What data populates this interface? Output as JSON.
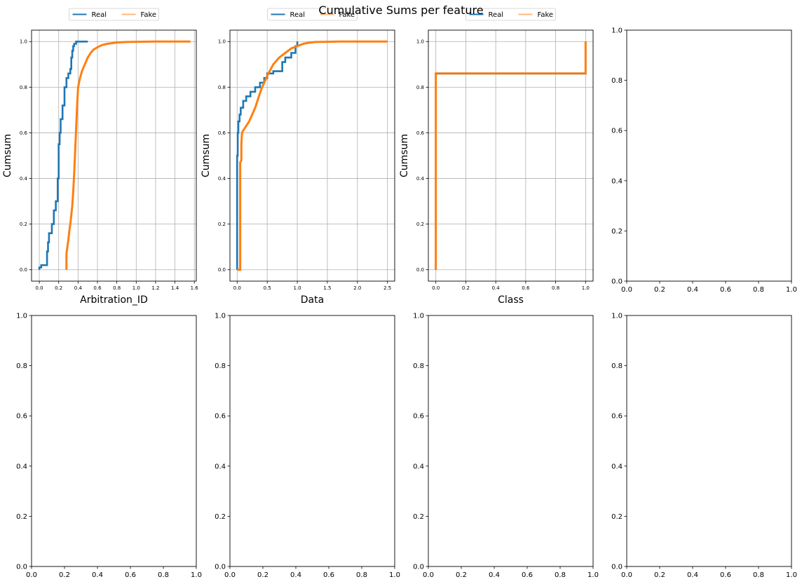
{
  "figure": {
    "title": "Cumulative Sums per feature"
  },
  "colors": {
    "real": "#1f77b4",
    "fake": "#ff7f0e",
    "grid": "#b0b0b0",
    "axis": "#000000"
  },
  "chart_data": [
    {
      "type": "line",
      "xlabel": "Arbitration_ID",
      "ylabel": "Cumsum",
      "xlim": [
        -0.08,
        1.62
      ],
      "ylim": [
        -0.05,
        1.05
      ],
      "xticks": [
        0.0,
        0.2,
        0.4,
        0.6,
        0.8,
        1.0,
        1.2,
        1.4,
        1.6
      ],
      "xtick_labels": [
        "0.0",
        "0.2",
        "0.4",
        "0.6",
        "0.8",
        "1.0",
        "1.2",
        "1.4",
        "1.6"
      ],
      "yticks": [
        0.0,
        0.2,
        0.4,
        0.6,
        0.8,
        1.0
      ],
      "ytick_labels": [
        "0.0",
        "0.2",
        "0.4",
        "0.6",
        "0.8",
        "1.0"
      ],
      "grid": true,
      "legend": {
        "placement": "top-center-above",
        "entries": [
          "Real",
          "Fake"
        ]
      },
      "series": [
        {
          "name": "Real",
          "x": [
            0.0,
            0.0,
            0.02,
            0.02,
            0.08,
            0.08,
            0.09,
            0.09,
            0.1,
            0.1,
            0.13,
            0.13,
            0.15,
            0.15,
            0.17,
            0.17,
            0.19,
            0.19,
            0.2,
            0.2,
            0.21,
            0.21,
            0.22,
            0.22,
            0.24,
            0.24,
            0.26,
            0.26,
            0.28,
            0.28,
            0.3,
            0.3,
            0.32,
            0.32,
            0.33,
            0.33,
            0.34,
            0.34,
            0.35,
            0.35,
            0.36,
            0.36,
            0.38,
            0.38,
            0.47,
            0.5
          ],
          "y": [
            0.0,
            0.01,
            0.01,
            0.02,
            0.02,
            0.08,
            0.08,
            0.12,
            0.12,
            0.16,
            0.16,
            0.2,
            0.2,
            0.26,
            0.26,
            0.3,
            0.3,
            0.4,
            0.4,
            0.55,
            0.55,
            0.6,
            0.6,
            0.66,
            0.66,
            0.72,
            0.72,
            0.8,
            0.8,
            0.84,
            0.84,
            0.86,
            0.86,
            0.88,
            0.88,
            0.93,
            0.93,
            0.96,
            0.96,
            0.98,
            0.98,
            0.99,
            0.99,
            1.0,
            1.0,
            1.0
          ]
        },
        {
          "name": "Fake",
          "x": [
            0.28,
            0.28,
            0.29,
            0.3,
            0.31,
            0.32,
            0.33,
            0.34,
            0.35,
            0.36,
            0.37,
            0.38,
            0.39,
            0.4,
            0.42,
            0.44,
            0.46,
            0.48,
            0.5,
            0.53,
            0.56,
            0.6,
            0.65,
            0.7,
            0.75,
            0.8,
            0.9,
            1.0,
            1.2,
            1.4,
            1.56
          ],
          "y": [
            0.0,
            0.07,
            0.1,
            0.13,
            0.17,
            0.2,
            0.24,
            0.28,
            0.34,
            0.42,
            0.52,
            0.62,
            0.72,
            0.8,
            0.84,
            0.87,
            0.89,
            0.91,
            0.93,
            0.95,
            0.965,
            0.975,
            0.985,
            0.99,
            0.993,
            0.996,
            0.998,
            0.999,
            1.0,
            1.0,
            1.0
          ]
        }
      ]
    },
    {
      "type": "line",
      "xlabel": "Data",
      "ylabel": "Cumsum",
      "xlim": [
        -0.12,
        2.62
      ],
      "ylim": [
        -0.05,
        1.05
      ],
      "xticks": [
        0.0,
        0.5,
        1.0,
        1.5,
        2.0,
        2.5
      ],
      "xtick_labels": [
        "0.0",
        "0.5",
        "1.0",
        "1.5",
        "2.0",
        "2.5"
      ],
      "yticks": [
        0.0,
        0.2,
        0.4,
        0.6,
        0.8,
        1.0
      ],
      "ytick_labels": [
        "0.0",
        "0.2",
        "0.4",
        "0.6",
        "0.8",
        "1.0"
      ],
      "grid": true,
      "legend": {
        "placement": "top-center-above",
        "entries": [
          "Real",
          "Fake"
        ]
      },
      "series": [
        {
          "name": "Real",
          "x": [
            0.0,
            0.0,
            0.01,
            0.01,
            0.02,
            0.02,
            0.04,
            0.04,
            0.06,
            0.06,
            0.1,
            0.1,
            0.15,
            0.15,
            0.22,
            0.22,
            0.3,
            0.3,
            0.38,
            0.38,
            0.45,
            0.45,
            0.5,
            0.5,
            0.6,
            0.6,
            0.75,
            0.75,
            0.8,
            0.8,
            0.9,
            0.9,
            0.97,
            0.97,
            1.0,
            1.0
          ],
          "y": [
            0.0,
            0.5,
            0.5,
            0.6,
            0.6,
            0.65,
            0.65,
            0.68,
            0.68,
            0.71,
            0.71,
            0.74,
            0.74,
            0.76,
            0.76,
            0.78,
            0.78,
            0.8,
            0.8,
            0.82,
            0.82,
            0.84,
            0.84,
            0.86,
            0.86,
            0.87,
            0.87,
            0.91,
            0.91,
            0.93,
            0.93,
            0.95,
            0.95,
            0.98,
            0.98,
            1.0
          ]
        },
        {
          "name": "Fake",
          "x": [
            0.0,
            0.05,
            0.05,
            0.07,
            0.07,
            0.08,
            0.1,
            0.15,
            0.2,
            0.25,
            0.3,
            0.35,
            0.4,
            0.45,
            0.5,
            0.6,
            0.7,
            0.8,
            0.9,
            1.0,
            1.1,
            1.2,
            1.3,
            1.5,
            1.7,
            2.0,
            2.5
          ],
          "y": [
            0.0,
            0.0,
            0.47,
            0.48,
            0.55,
            0.6,
            0.61,
            0.63,
            0.65,
            0.68,
            0.71,
            0.75,
            0.79,
            0.82,
            0.85,
            0.9,
            0.93,
            0.95,
            0.97,
            0.98,
            0.99,
            0.995,
            0.998,
            0.999,
            1.0,
            1.0,
            1.0
          ]
        }
      ]
    },
    {
      "type": "line",
      "xlabel": "Class",
      "ylabel": "Cumsum",
      "xlim": [
        -0.05,
        1.05
      ],
      "ylim": [
        -0.05,
        1.05
      ],
      "xticks": [
        0.0,
        0.2,
        0.4,
        0.6,
        0.8,
        1.0
      ],
      "xtick_labels": [
        "0.0",
        "0.2",
        "0.4",
        "0.6",
        "0.8",
        "1.0"
      ],
      "yticks": [
        0.0,
        0.2,
        0.4,
        0.6,
        0.8,
        1.0
      ],
      "ytick_labels": [
        "0.0",
        "0.2",
        "0.4",
        "0.6",
        "0.8",
        "1.0"
      ],
      "grid": true,
      "legend": {
        "placement": "top-center-above",
        "entries": [
          "Real",
          "Fake"
        ]
      },
      "series": [
        {
          "name": "Real",
          "x": [
            0.0,
            0.0,
            1.0,
            1.0
          ],
          "y": [
            0.0,
            0.86,
            0.86,
            1.0
          ]
        },
        {
          "name": "Fake",
          "x": [
            0.0,
            0.0,
            1.0,
            1.0
          ],
          "y": [
            0.0,
            0.86,
            0.86,
            1.0
          ]
        }
      ]
    },
    {
      "type": "line",
      "xlabel": "",
      "ylabel": "",
      "xlim": [
        0,
        1
      ],
      "ylim": [
        0,
        1
      ],
      "xticks": [
        0.0,
        0.2,
        0.4,
        0.6,
        0.8,
        1.0
      ],
      "xtick_labels": [
        "0.0",
        "0.2",
        "0.4",
        "0.6",
        "0.8",
        "1.0"
      ],
      "yticks": [
        0.0,
        0.2,
        0.4,
        0.6,
        0.8,
        1.0
      ],
      "ytick_labels": [
        "0.0",
        "0.2",
        "0.4",
        "0.6",
        "0.8",
        "1.0"
      ],
      "grid": false,
      "series": []
    },
    {
      "type": "line",
      "xlabel": "",
      "ylabel": "",
      "xlim": [
        0,
        1
      ],
      "ylim": [
        0,
        1
      ],
      "xticks": [
        0.0,
        0.2,
        0.4,
        0.6,
        0.8,
        1.0
      ],
      "xtick_labels": [
        "0.0",
        "0.2",
        "0.4",
        "0.6",
        "0.8",
        "1.0"
      ],
      "yticks": [
        0.0,
        0.2,
        0.4,
        0.6,
        0.8,
        1.0
      ],
      "ytick_labels": [
        "0.0",
        "0.2",
        "0.4",
        "0.6",
        "0.8",
        "1.0"
      ],
      "grid": false,
      "series": []
    },
    {
      "type": "line",
      "xlabel": "",
      "ylabel": "",
      "xlim": [
        0,
        1
      ],
      "ylim": [
        0,
        1
      ],
      "xticks": [
        0.0,
        0.2,
        0.4,
        0.6,
        0.8,
        1.0
      ],
      "xtick_labels": [
        "0.0",
        "0.2",
        "0.4",
        "0.6",
        "0.8",
        "1.0"
      ],
      "yticks": [
        0.0,
        0.2,
        0.4,
        0.6,
        0.8,
        1.0
      ],
      "ytick_labels": [
        "0.0",
        "0.2",
        "0.4",
        "0.6",
        "0.8",
        "1.0"
      ],
      "grid": false,
      "series": []
    },
    {
      "type": "line",
      "xlabel": "",
      "ylabel": "",
      "xlim": [
        0,
        1
      ],
      "ylim": [
        0,
        1
      ],
      "xticks": [
        0.0,
        0.2,
        0.4,
        0.6,
        0.8,
        1.0
      ],
      "xtick_labels": [
        "0.0",
        "0.2",
        "0.4",
        "0.6",
        "0.8",
        "1.0"
      ],
      "yticks": [
        0.0,
        0.2,
        0.4,
        0.6,
        0.8,
        1.0
      ],
      "ytick_labels": [
        "0.0",
        "0.2",
        "0.4",
        "0.6",
        "0.8",
        "1.0"
      ],
      "grid": false,
      "series": []
    },
    {
      "type": "line",
      "xlabel": "",
      "ylabel": "",
      "xlim": [
        0,
        1
      ],
      "ylim": [
        0,
        1
      ],
      "xticks": [
        0.0,
        0.2,
        0.4,
        0.6,
        0.8,
        1.0
      ],
      "xtick_labels": [
        "0.0",
        "0.2",
        "0.4",
        "0.6",
        "0.8",
        "1.0"
      ],
      "yticks": [
        0.0,
        0.2,
        0.4,
        0.6,
        0.8,
        1.0
      ],
      "ytick_labels": [
        "0.0",
        "0.2",
        "0.4",
        "0.6",
        "0.8",
        "1.0"
      ],
      "grid": false,
      "series": []
    }
  ]
}
